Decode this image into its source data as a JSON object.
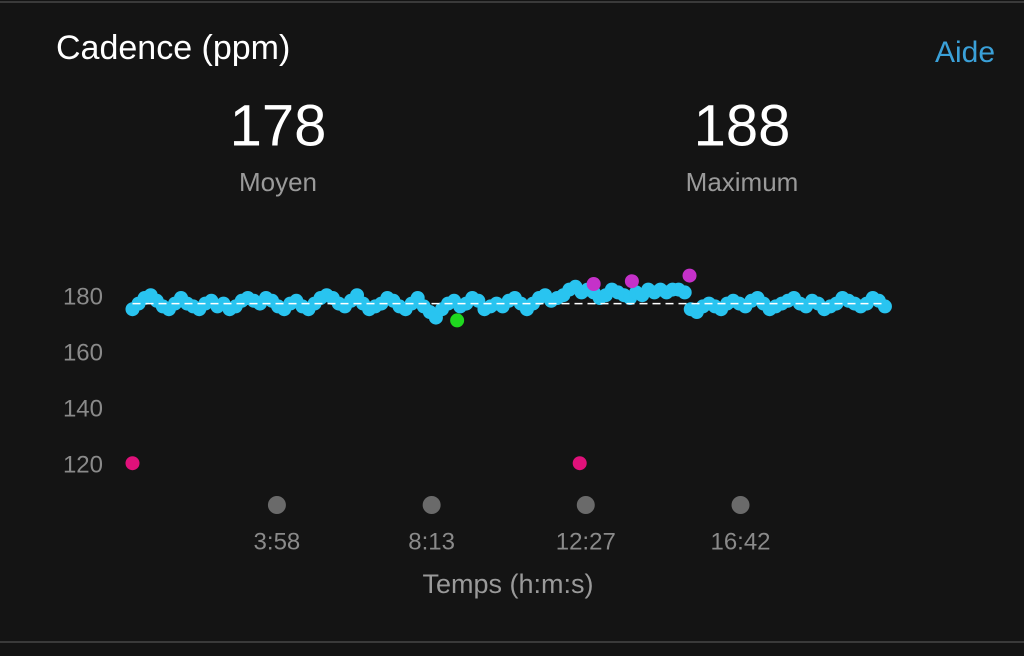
{
  "header": {
    "title": "Cadence (ppm)",
    "help": "Aide"
  },
  "summary": [
    {
      "value": 178,
      "label": "Moyen"
    },
    {
      "value": 188,
      "label": "Maximum"
    }
  ],
  "chart_data": {
    "type": "scatter",
    "x_label": "Temps (h:m:s)",
    "xlim": [
      0,
      1250
    ],
    "ylim": [
      115,
      190
    ],
    "xticks": [
      {
        "value": 238,
        "label": "3:58"
      },
      {
        "value": 493,
        "label": "8:13"
      },
      {
        "value": 747,
        "label": "12:27"
      },
      {
        "value": 1002,
        "label": "16:42"
      }
    ],
    "yticks": [
      120,
      140,
      160,
      180
    ],
    "series": [
      {
        "color": "#29c4f0",
        "x": [
          0,
          10,
          20,
          30,
          40,
          50,
          60,
          70,
          80,
          90,
          100,
          110,
          120,
          130,
          140,
          150,
          160,
          170,
          180,
          190,
          200,
          210,
          220,
          230,
          240,
          250,
          260,
          270,
          280,
          290,
          300,
          310,
          320,
          330,
          340,
          350,
          360,
          370,
          380,
          390,
          400,
          410,
          420,
          430,
          440,
          450,
          460,
          470,
          480,
          490,
          500,
          510,
          520,
          530,
          540,
          550,
          560,
          570,
          580,
          590,
          600,
          610,
          620,
          630,
          640,
          650,
          660,
          670,
          680,
          690,
          700,
          710,
          720,
          730,
          740,
          750,
          760,
          770,
          780,
          790,
          800,
          810,
          820,
          830,
          840,
          850,
          860,
          870,
          880,
          890,
          900,
          910,
          920,
          930,
          940,
          950,
          960,
          970,
          980,
          990,
          1000,
          1010,
          1020,
          1030,
          1040,
          1050,
          1060,
          1070,
          1080,
          1090,
          1100,
          1110,
          1120,
          1130,
          1140,
          1150,
          1160,
          1170,
          1180,
          1190,
          1200,
          1210,
          1220,
          1230,
          1240
        ],
        "values": [
          176,
          178,
          180,
          181,
          179,
          177,
          176,
          178,
          180,
          178,
          177,
          176,
          178,
          179,
          177,
          178,
          176,
          177,
          179,
          180,
          179,
          178,
          180,
          179,
          177,
          176,
          178,
          179,
          177,
          176,
          178,
          180,
          181,
          180,
          178,
          177,
          179,
          181,
          178,
          176,
          177,
          178,
          180,
          179,
          177,
          176,
          178,
          180,
          177,
          175,
          173,
          176,
          178,
          179,
          177,
          178,
          180,
          179,
          176,
          177,
          178,
          177,
          179,
          180,
          178,
          176,
          178,
          180,
          181,
          179,
          180,
          181,
          183,
          184,
          182,
          183,
          182,
          180,
          181,
          183,
          182,
          181,
          180,
          182,
          181,
          183,
          182,
          183,
          182,
          183,
          183,
          182,
          176,
          175,
          177,
          178,
          177,
          176,
          178,
          179,
          178,
          177,
          179,
          180,
          178,
          176,
          177,
          178,
          179,
          180,
          178,
          177,
          179,
          178,
          176,
          177,
          178,
          180,
          179,
          178,
          177,
          178,
          180,
          179,
          177
        ]
      },
      {
        "color": "#e0117a",
        "x": [
          0,
          737
        ],
        "values": [
          121,
          121
        ]
      },
      {
        "color": "#1fd81f",
        "x": [
          535
        ],
        "values": [
          172
        ]
      },
      {
        "color": "#c531c9",
        "x": [
          760,
          823,
          918
        ],
        "values": [
          185,
          186,
          188
        ]
      }
    ]
  }
}
